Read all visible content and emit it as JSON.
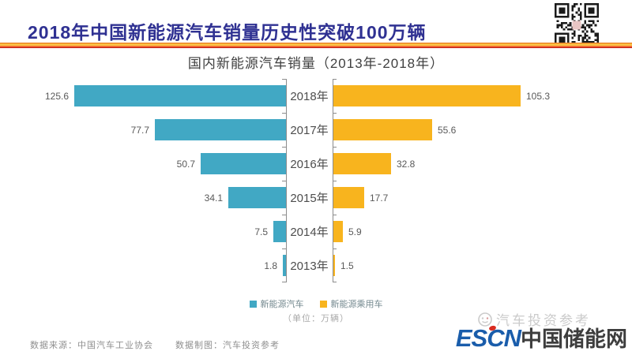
{
  "header": {
    "title": "2018年中国新能源汽车销量历史性突破100万辆"
  },
  "chart": {
    "title": "国内新能源汽车销量（2013年-2018年）",
    "unit_label": "（单位：万辆）",
    "legend": [
      {
        "label": "新能源汽车",
        "color": "#41a8c4"
      },
      {
        "label": "新能源乘用车",
        "color": "#f8b41e"
      }
    ]
  },
  "chart_data": {
    "type": "bar",
    "variant": "tornado-horizontal",
    "title": "国内新能源汽车销量（2013年-2018年）",
    "unit": "万辆",
    "categories": [
      "2018年",
      "2017年",
      "2016年",
      "2015年",
      "2014年",
      "2013年"
    ],
    "series": [
      {
        "name": "新能源汽车",
        "side": "left",
        "color": "#41a8c4",
        "values": [
          125.6,
          77.7,
          50.7,
          34.1,
          7.5,
          1.8
        ]
      },
      {
        "name": "新能源乘用车",
        "side": "right",
        "color": "#f8b41e",
        "values": [
          105.3,
          55.6,
          32.8,
          17.7,
          5.9,
          1.5
        ]
      }
    ],
    "legend_position": "bottom",
    "grid": false
  },
  "footer": {
    "source_label": "数据来源：中国汽车工业协会",
    "credit_label": "数据制图：汽车投资参考"
  },
  "branding": {
    "watermark": "汽车投资参考",
    "logo_en": "ESCN",
    "logo_cn": "中国储能网",
    "logo_color": "#1a5dab"
  }
}
